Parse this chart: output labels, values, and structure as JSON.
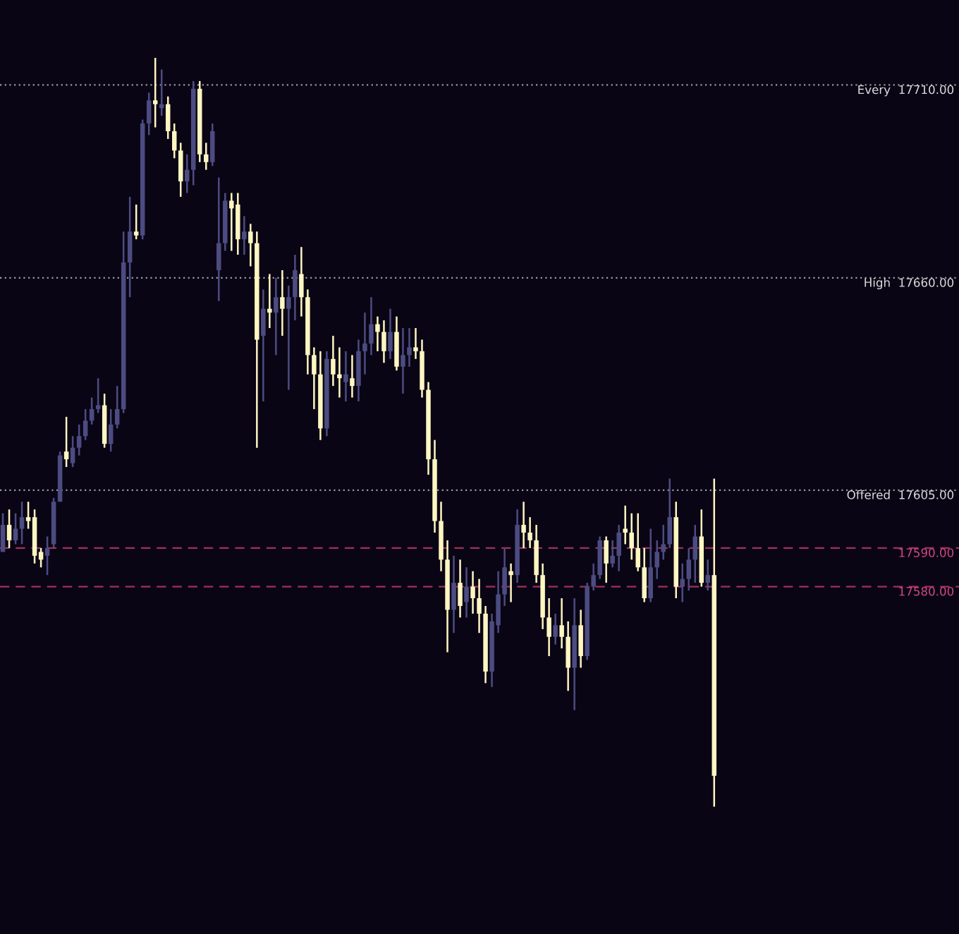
{
  "chart_data": {
    "type": "candlestick",
    "categories": [
      null,
      null,
      null,
      null,
      null,
      null,
      null,
      null,
      null,
      null,
      null,
      null,
      null,
      null,
      null,
      null,
      null,
      null,
      null,
      null,
      null,
      null,
      null,
      null,
      null,
      null,
      null,
      null,
      null,
      null,
      null,
      null,
      null,
      null,
      null,
      null,
      null,
      null,
      null,
      null,
      null,
      null,
      null,
      null,
      null,
      null,
      null,
      null,
      null,
      null,
      null,
      null,
      null,
      null,
      null,
      null,
      null,
      null,
      null,
      null,
      null,
      null,
      null,
      null,
      null,
      null,
      null,
      null,
      null,
      null,
      null,
      null,
      null,
      null,
      null,
      null,
      null,
      null,
      null,
      null,
      null,
      null,
      null,
      null,
      null,
      null,
      null,
      null,
      null,
      null,
      null,
      null,
      null,
      null,
      null,
      null,
      null,
      null,
      null,
      null,
      null,
      null,
      null,
      null,
      null,
      null,
      null,
      null,
      null,
      null,
      null,
      null,
      null
    ],
    "ohlc": [
      [
        17589,
        17599,
        17589,
        17596
      ],
      [
        17596,
        17600,
        17590,
        17592
      ],
      [
        17592,
        17599,
        17591,
        17595
      ],
      [
        17595,
        17602,
        17591,
        17598
      ],
      [
        17598,
        17602,
        17595,
        17597
      ],
      [
        17598,
        17600,
        17586,
        17588
      ],
      [
        17589,
        17590,
        17585,
        17587
      ],
      [
        17588,
        17593,
        17583,
        17590
      ],
      [
        17591,
        17603,
        17590,
        17602
      ],
      [
        17602,
        17615,
        17602,
        17614
      ],
      [
        17615,
        17624,
        17611,
        17613
      ],
      [
        17612,
        17619,
        17611,
        17616
      ],
      [
        17616,
        17622,
        17614,
        17619
      ],
      [
        17619,
        17626,
        17618,
        17623
      ],
      [
        17623,
        17629,
        17622,
        17626
      ],
      [
        17626,
        17634,
        17625,
        17627
      ],
      [
        17627,
        17630,
        17616,
        17617
      ],
      [
        17617,
        17626,
        17615,
        17622
      ],
      [
        17622,
        17632,
        17621,
        17626
      ],
      [
        17626,
        17672,
        17625,
        17664
      ],
      [
        17664,
        17681,
        17655,
        17672
      ],
      [
        17672,
        17679,
        17670,
        17671
      ],
      [
        17671,
        17701,
        17670,
        17700
      ],
      [
        17700,
        17708,
        17697,
        17706
      ],
      [
        17706,
        17717,
        17699,
        17705
      ],
      [
        17704,
        17714,
        17702,
        17705
      ],
      [
        17705,
        17707,
        17696,
        17698
      ],
      [
        17698,
        17700,
        17691,
        17693
      ],
      [
        17693,
        17695,
        17681,
        17685
      ],
      [
        17685,
        17692,
        17682,
        17688
      ],
      [
        17688,
        17711,
        17684,
        17709
      ],
      [
        17709,
        17711,
        17690,
        17692
      ],
      [
        17692,
        17695,
        17688,
        17690
      ],
      [
        17690,
        17700,
        17689,
        17698
      ],
      [
        17662,
        17686,
        17654,
        17669
      ],
      [
        17669,
        17682,
        17667,
        17680
      ],
      [
        17680,
        17682,
        17667,
        17678
      ],
      [
        17679,
        17682,
        17666,
        17670
      ],
      [
        17670,
        17676,
        17666,
        17672
      ],
      [
        17672,
        17674,
        17663,
        17669
      ],
      [
        17669,
        17672,
        17616,
        17644
      ],
      [
        17645,
        17657,
        17628,
        17652
      ],
      [
        17652,
        17661,
        17647,
        17651
      ],
      [
        17651,
        17660,
        17640,
        17655
      ],
      [
        17655,
        17662,
        17645,
        17652
      ],
      [
        17652,
        17658,
        17631,
        17655
      ],
      [
        17655,
        17666,
        17649,
        17662
      ],
      [
        17661,
        17668,
        17650,
        17655
      ],
      [
        17655,
        17657,
        17635,
        17640
      ],
      [
        17640,
        17642,
        17626,
        17635
      ],
      [
        17635,
        17641,
        17618,
        17621
      ],
      [
        17621,
        17641,
        17619,
        17639
      ],
      [
        17639,
        17645,
        17632,
        17635
      ],
      [
        17635,
        17642,
        17629,
        17634
      ],
      [
        17633,
        17641,
        17628,
        17635
      ],
      [
        17634,
        17640,
        17629,
        17632
      ],
      [
        17632,
        17644,
        17628,
        17641
      ],
      [
        17641,
        17651,
        17635,
        17643
      ],
      [
        17643,
        17655,
        17640,
        17648
      ],
      [
        17648,
        17650,
        17641,
        17646
      ],
      [
        17646,
        17649,
        17638,
        17641
      ],
      [
        17641,
        17652,
        17639,
        17646
      ],
      [
        17646,
        17650,
        17636,
        17637
      ],
      [
        17637,
        17647,
        17630,
        17640
      ],
      [
        17640,
        17647,
        17637,
        17642
      ],
      [
        17642,
        17647,
        17639,
        17641
      ],
      [
        17641,
        17644,
        17629,
        17631
      ],
      [
        17631,
        17633,
        17609,
        17613
      ],
      [
        17613,
        17618,
        17594,
        17597
      ],
      [
        17597,
        17602,
        17584,
        17587
      ],
      [
        17587,
        17592,
        17563,
        17574
      ],
      [
        17574,
        17588,
        17568,
        17581
      ],
      [
        17581,
        17587,
        17572,
        17575
      ],
      [
        17576,
        17585,
        17572,
        17580
      ],
      [
        17580,
        17584,
        17573,
        17577
      ],
      [
        17577,
        17582,
        17568,
        17573
      ],
      [
        17573,
        17575,
        17555,
        17558
      ],
      [
        17558,
        17573,
        17554,
        17571
      ],
      [
        17570,
        17584,
        17568,
        17578
      ],
      [
        17578,
        17590,
        17575,
        17585
      ],
      [
        17584,
        17586,
        17576,
        17583
      ],
      [
        17583,
        17600,
        17581,
        17596
      ],
      [
        17596,
        17602,
        17590,
        17594
      ],
      [
        17594,
        17598,
        17590,
        17592
      ],
      [
        17592,
        17596,
        17581,
        17583
      ],
      [
        17583,
        17586,
        17569,
        17572
      ],
      [
        17572,
        17577,
        17562,
        17567
      ],
      [
        17567,
        17573,
        17565,
        17570
      ],
      [
        17570,
        17577,
        17564,
        17567
      ],
      [
        17567,
        17571,
        17553,
        17559
      ],
      [
        17559,
        17577,
        17548,
        17570
      ],
      [
        17570,
        17574,
        17559,
        17562
      ],
      [
        17562,
        17581,
        17561,
        17580
      ],
      [
        17580,
        17586,
        17579,
        17583
      ],
      [
        17583,
        17593,
        17582,
        17592
      ],
      [
        17592,
        17593,
        17581,
        17586
      ],
      [
        17586,
        17592,
        17585,
        17588
      ],
      [
        17588,
        17596,
        17584,
        17594
      ],
      [
        17595,
        17601,
        17591,
        17594
      ],
      [
        17594,
        17599,
        17587,
        17590
      ],
      [
        17590,
        17599,
        17584,
        17585
      ],
      [
        17585,
        17590,
        17576,
        17577
      ],
      [
        17577,
        17595,
        17576,
        17585
      ],
      [
        17585,
        17592,
        17582,
        17589
      ],
      [
        17589,
        17596,
        17587,
        17591
      ],
      [
        17591,
        17608,
        17590,
        17598
      ],
      [
        17598,
        17602,
        17577,
        17580
      ],
      [
        17580,
        17586,
        17576,
        17582
      ],
      [
        17582,
        17590,
        17579,
        17587
      ],
      [
        17587,
        17596,
        17581,
        17593
      ],
      [
        17593,
        17600,
        17580,
        17581
      ],
      [
        17581,
        17587,
        17579,
        17583
      ],
      [
        17583,
        17608,
        17523,
        17531
      ]
    ],
    "colors": [
      "#4c4c82",
      "#fff6c2",
      "#4c4c82",
      "#4c4c82",
      "#fff6c2",
      "#fff6c2",
      "#fff6c2",
      "#4c4c82",
      "#4c4c82",
      "#4c4c82",
      "#fff6c2",
      "#4c4c82",
      "#4c4c82",
      "#4c4c82",
      "#4c4c82",
      "#4c4c82",
      "#fff6c2",
      "#4c4c82",
      "#4c4c82",
      "#4c4c82",
      "#4c4c82",
      "#fff6c2",
      "#4c4c82",
      "#4c4c82",
      "#fff6c2",
      "#4c4c82",
      "#fff6c2",
      "#fff6c2",
      "#fff6c2",
      "#4c4c82",
      "#4c4c82",
      "#fff6c2",
      "#fff6c2",
      "#4c4c82",
      "#4c4c82",
      "#4c4c82",
      "#fff6c2",
      "#fff6c2",
      "#4c4c82",
      "#fff6c2",
      "#fff6c2",
      "#4c4c82",
      "#fff6c2",
      "#4c4c82",
      "#fff6c2",
      "#4c4c82",
      "#4c4c82",
      "#fff6c2",
      "#fff6c2",
      "#fff6c2",
      "#fff6c2",
      "#4c4c82",
      "#fff6c2",
      "#fff6c2",
      "#4c4c82",
      "#fff6c2",
      "#4c4c82",
      "#4c4c82",
      "#4c4c82",
      "#fff6c2",
      "#fff6c2",
      "#4c4c82",
      "#fff6c2",
      "#4c4c82",
      "#4c4c82",
      "#fff6c2",
      "#fff6c2",
      "#fff6c2",
      "#fff6c2",
      "#fff6c2",
      "#fff6c2",
      "#4c4c82",
      "#fff6c2",
      "#4c4c82",
      "#fff6c2",
      "#fff6c2",
      "#fff6c2",
      "#4c4c82",
      "#4c4c82",
      "#4c4c82",
      "#fff6c2",
      "#4c4c82",
      "#fff6c2",
      "#fff6c2",
      "#fff6c2",
      "#fff6c2",
      "#fff6c2",
      "#4c4c82",
      "#fff6c2",
      "#fff6c2",
      "#4c4c82",
      "#fff6c2",
      "#4c4c82",
      "#4c4c82",
      "#4c4c82",
      "#fff6c2",
      "#4c4c82",
      "#4c4c82",
      "#fff6c2",
      "#fff6c2",
      "#fff6c2",
      "#fff6c2",
      "#4c4c82",
      "#4c4c82",
      "#4c4c82",
      "#4c4c82",
      "#fff6c2",
      "#4c4c82",
      "#4c4c82",
      "#4c4c82",
      "#fff6c2",
      "#4c4c82",
      "#fff6c2"
    ],
    "ylim": [
      17490,
      17732
    ],
    "tick_labels": false,
    "ref_lines": [
      {
        "axis": "y",
        "value": 17710,
        "label": "Every  17710.00",
        "color": "#9a9a9a",
        "line_style": "dotted"
      },
      {
        "axis": "y",
        "value": 17660,
        "label": "High  17660.00",
        "color": "#9a9a9a",
        "line_style": "dotted"
      },
      {
        "axis": "y",
        "value": 17605,
        "label": "Offered  17605.00",
        "color": "#9a9a9a",
        "line_style": "dotted"
      },
      {
        "axis": "y",
        "value": 17590,
        "label": "17590.00",
        "color": "#a0305c",
        "line_style": "dashed"
      },
      {
        "axis": "y",
        "value": 17580,
        "label": "17580.00",
        "color": "#a0305c",
        "line_style": "dashed"
      }
    ]
  }
}
